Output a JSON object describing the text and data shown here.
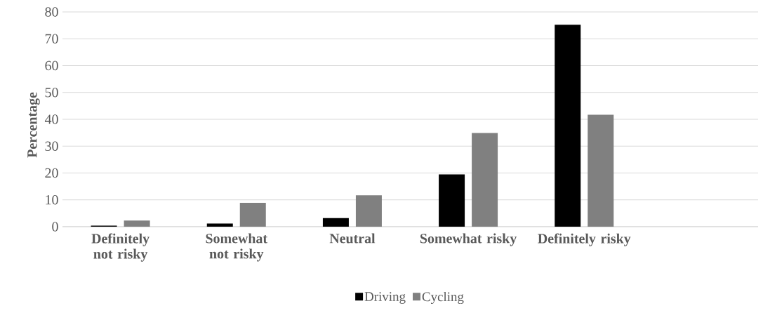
{
  "chart_data": {
    "type": "bar",
    "ylabel": "Percentage",
    "categories": [
      "Definitely not risky",
      "Somewhat not risky",
      "Neutral",
      "Somewhat risky",
      "Definitely risky",
      null
    ],
    "series": [
      {
        "name": "Driving",
        "color": "#000000",
        "values": [
          0.4,
          1.2,
          3.2,
          19.5,
          75.2,
          null
        ]
      },
      {
        "name": "Cycling",
        "color": "#808080",
        "values": [
          2.3,
          8.9,
          11.7,
          34.9,
          41.7,
          null
        ]
      }
    ],
    "ylim": [
      0,
      80
    ],
    "yticks": [
      0,
      10,
      20,
      30,
      40,
      50,
      60,
      70,
      80
    ],
    "grid": "y",
    "legend": "bottom"
  }
}
